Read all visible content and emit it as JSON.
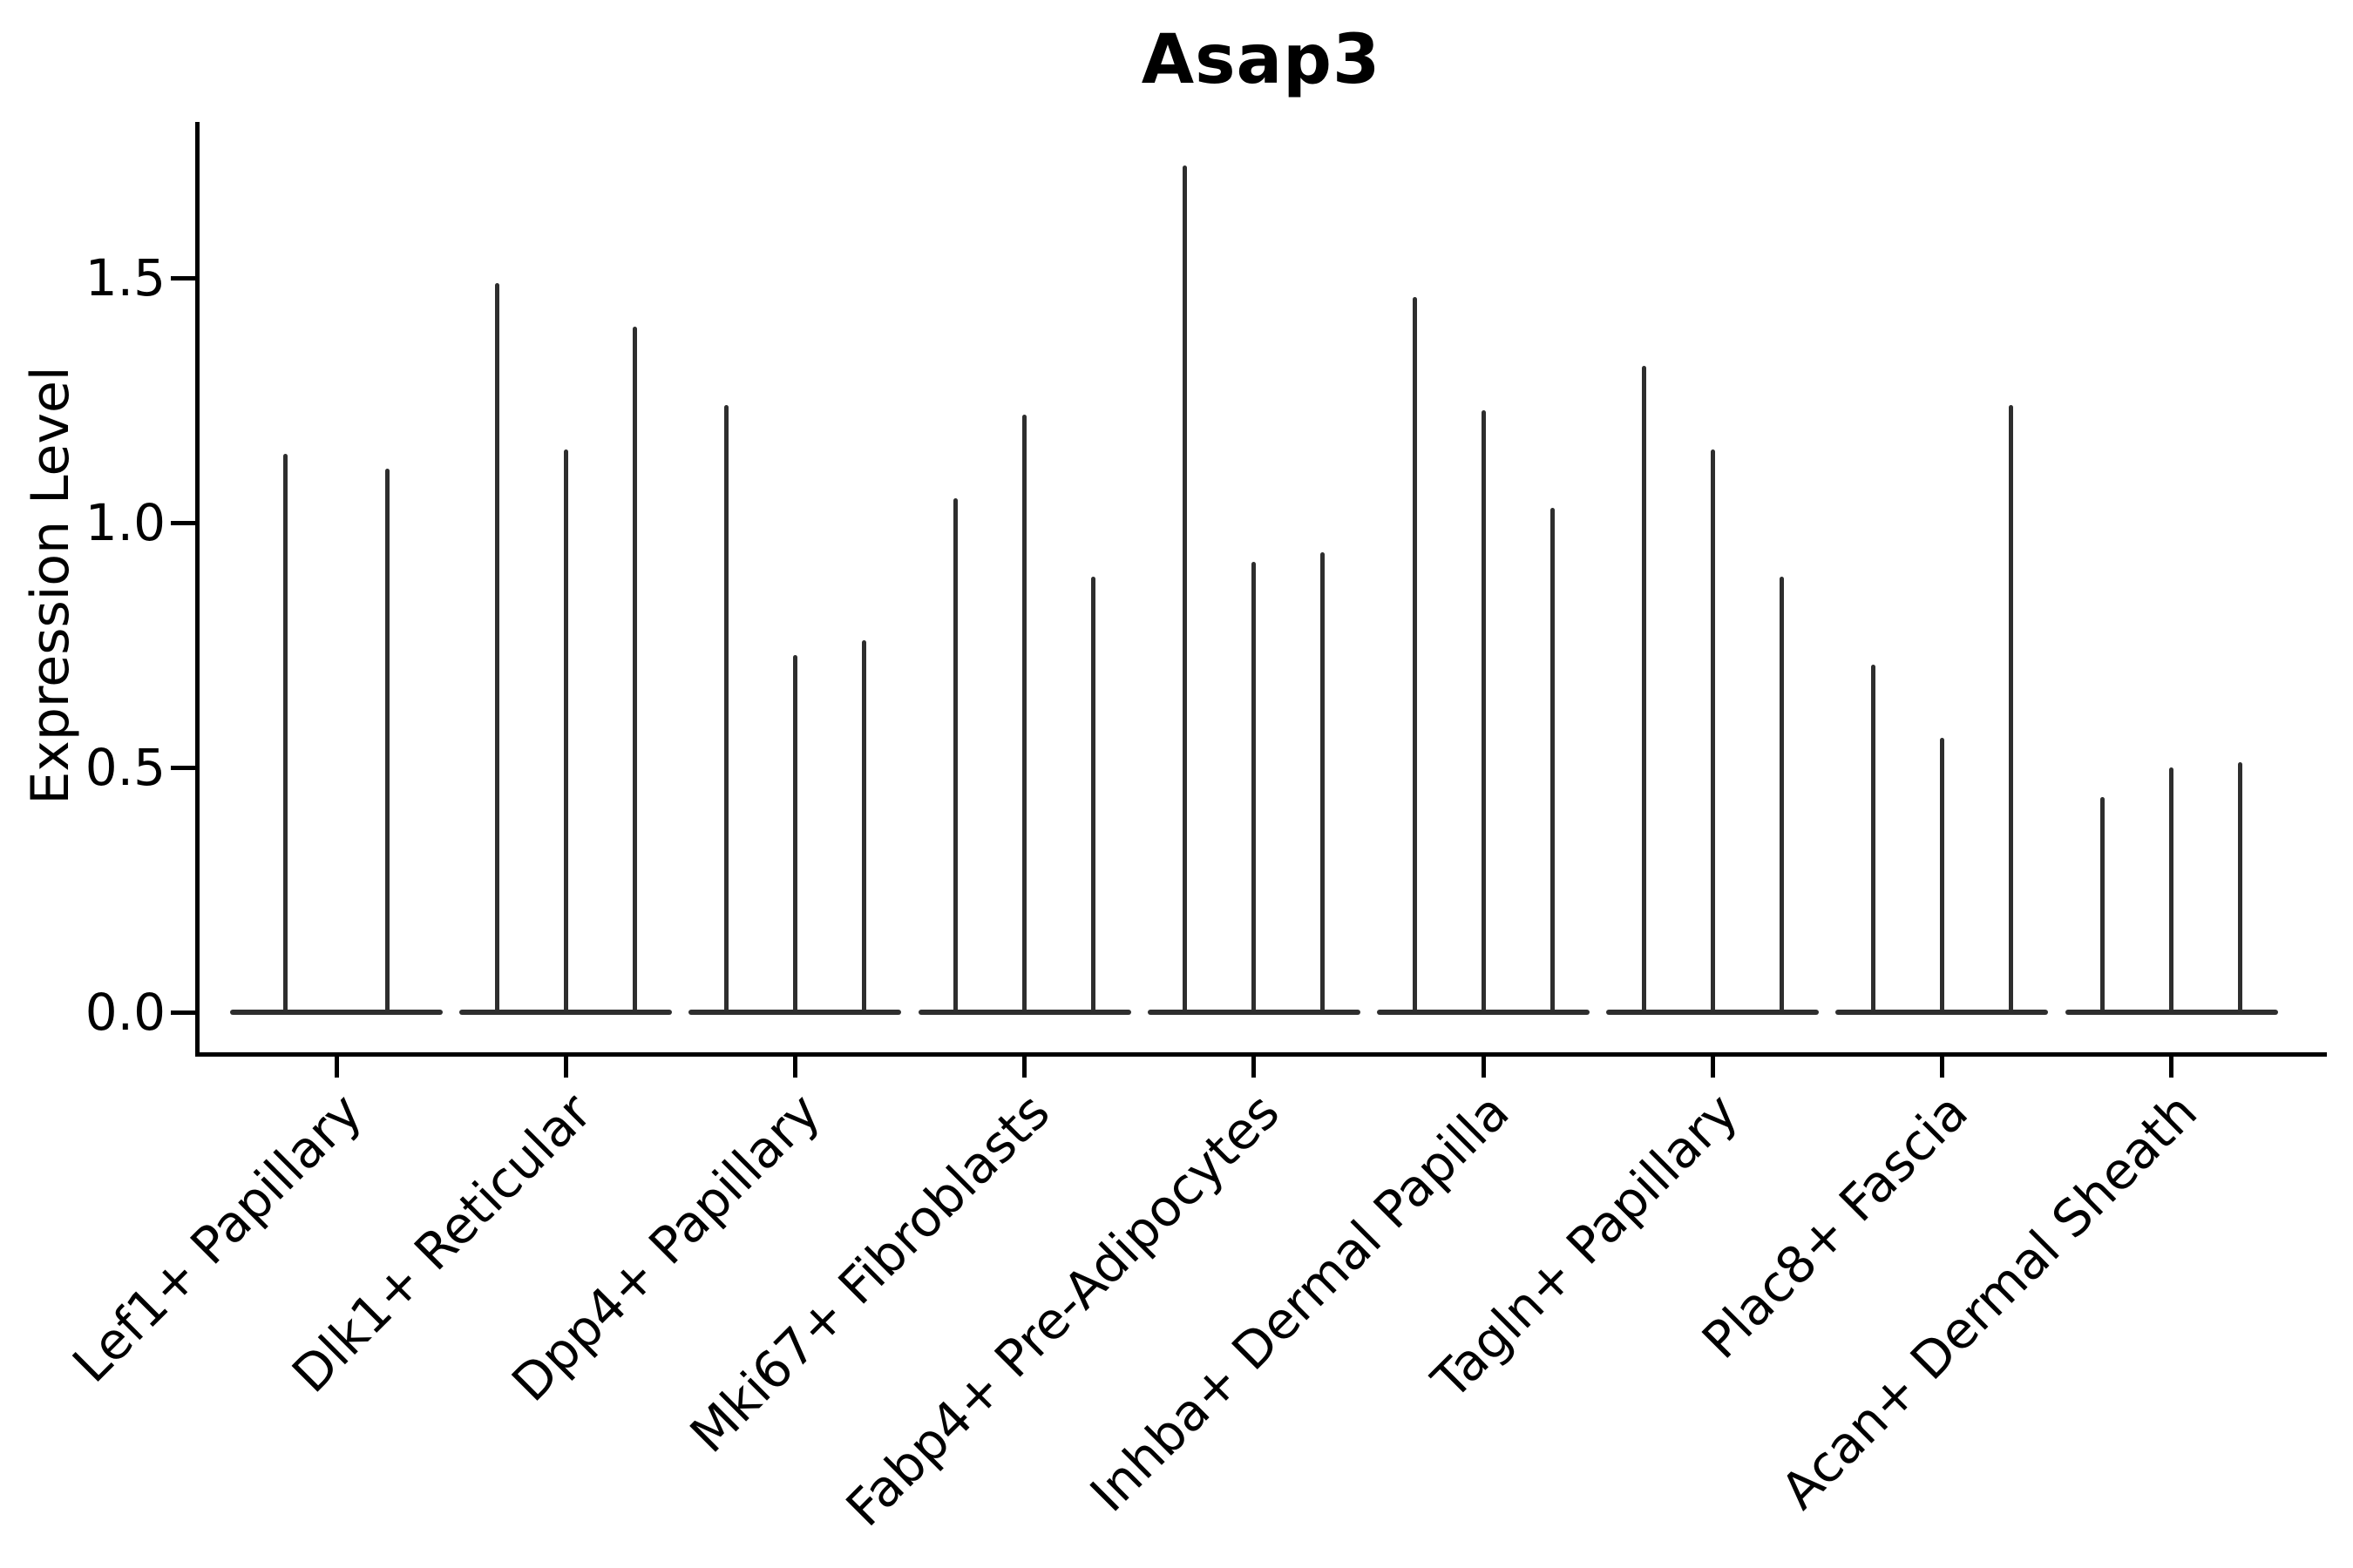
{
  "title": "Asap3",
  "y_axis_label": "Expression Level",
  "colors": {
    "violin": "#2e2e2e",
    "axis": "#000000",
    "background": "#ffffff"
  },
  "y_tick_labels": [
    "0.0",
    "0.5",
    "1.0",
    "1.5"
  ],
  "chart_data": {
    "type": "violin",
    "title": "Asap3",
    "xlabel": "",
    "ylabel": "Expression Level",
    "yticks": [
      0.0,
      0.5,
      1.0,
      1.5
    ],
    "ylim": [
      -0.08,
      1.82
    ],
    "grid": false,
    "legend": "none",
    "description": "Very thin violins (expression mostly 0 with sparse positive cells): each violin is a flat base blob at 0 and a thin vertical tail up to its maximum expression value.",
    "categories": [
      "Lef1+ Papillary",
      "Dlk1+ Reticular",
      "Dpp4+ Papillary",
      "Mki67+ Fibroblasts",
      "Fabp4+ Pre-Adipocytes",
      "Inhba+ Dermal Papilla",
      "Tagln+ Papillary",
      "Plac8+ Fascia",
      "Acan+ Dermal Sheath"
    ],
    "groups": [
      {
        "label": "Lef1+ Papillary",
        "violin_min": 0.0,
        "violin_max": [
          1.14,
          1.11
        ]
      },
      {
        "label": "Dlk1+ Reticular",
        "violin_min": 0.0,
        "violin_max": [
          1.49,
          1.15,
          1.4
        ]
      },
      {
        "label": "Dpp4+ Papillary",
        "violin_min": 0.0,
        "violin_max": [
          1.24,
          0.73,
          0.76
        ]
      },
      {
        "label": "Mki67+ Fibroblasts",
        "violin_min": 0.0,
        "violin_max": [
          1.05,
          1.22,
          0.89
        ]
      },
      {
        "label": "Fabp4+ Pre-Adipocytes",
        "violin_min": 0.0,
        "violin_max": [
          1.73,
          0.92,
          0.94
        ]
      },
      {
        "label": "Inhba+ Dermal Papilla",
        "violin_min": 0.0,
        "violin_max": [
          1.46,
          1.23,
          1.03
        ]
      },
      {
        "label": "Tagln+ Papillary",
        "violin_min": 0.0,
        "violin_max": [
          1.32,
          1.15,
          0.89
        ]
      },
      {
        "label": "Plac8+ Fascia",
        "violin_min": 0.0,
        "violin_max": [
          0.71,
          0.56,
          1.24
        ]
      },
      {
        "label": "Acan+ Dermal Sheath",
        "violin_min": 0.0,
        "violin_max": [
          0.44,
          0.5,
          0.51
        ]
      }
    ]
  }
}
